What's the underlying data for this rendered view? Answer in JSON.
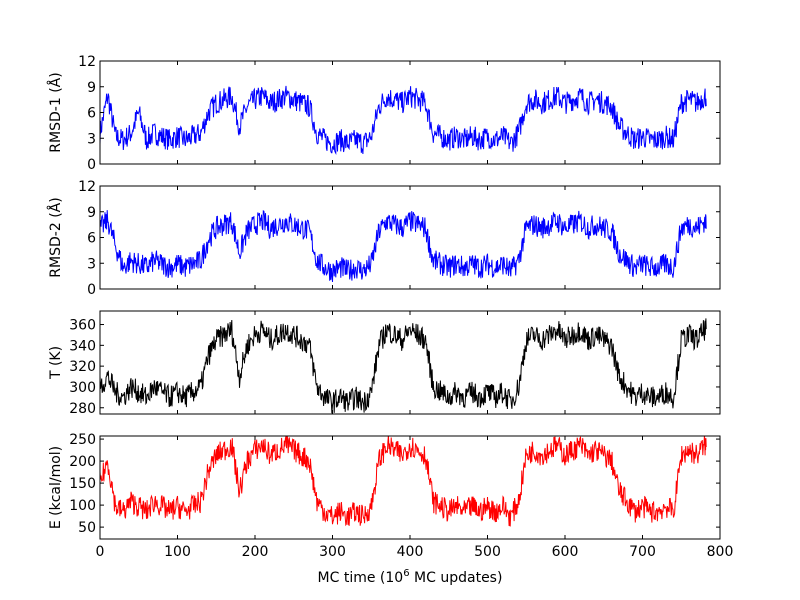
{
  "chart_data": {
    "type": "line",
    "layout": "4 vertically stacked panels sharing x axis",
    "xlabel": "MC time (10^6  MC updates)",
    "xlabel_parts": {
      "pre": "MC time (10",
      "sup": "6",
      "post": "  MC updates)"
    },
    "xlim": [
      0,
      800
    ],
    "xticks": [
      0,
      100,
      200,
      300,
      400,
      500,
      600,
      700,
      800
    ],
    "x": [
      0,
      10,
      20,
      30,
      40,
      50,
      60,
      70,
      80,
      90,
      100,
      110,
      120,
      130,
      140,
      150,
      160,
      170,
      180,
      190,
      200,
      210,
      220,
      230,
      240,
      250,
      260,
      270,
      280,
      290,
      300,
      310,
      320,
      330,
      340,
      350,
      360,
      370,
      380,
      390,
      400,
      410,
      420,
      430,
      440,
      450,
      460,
      470,
      480,
      490,
      500,
      510,
      520,
      530,
      540,
      550,
      560,
      570,
      580,
      590,
      600,
      610,
      620,
      630,
      640,
      650,
      660,
      670,
      680,
      690,
      700,
      710,
      720,
      730,
      740,
      750,
      760,
      770,
      780
    ],
    "panels": [
      {
        "ylabel": "RMSD-1 (Å)",
        "ylim": [
          0,
          12
        ],
        "yticks": [
          0,
          3,
          6,
          9,
          12
        ],
        "color": "#0000ff",
        "values": [
          3.6,
          8.0,
          3.2,
          2.8,
          3.6,
          6.0,
          2.8,
          3.6,
          3.2,
          2.8,
          3.2,
          2.8,
          3.2,
          3.6,
          6.0,
          7.1,
          7.5,
          7.9,
          4.4,
          6.7,
          7.5,
          7.9,
          7.1,
          7.5,
          7.9,
          7.5,
          7.1,
          6.7,
          3.6,
          2.8,
          2.4,
          2.8,
          2.4,
          2.8,
          2.4,
          3.2,
          6.7,
          7.9,
          7.5,
          7.1,
          7.9,
          7.5,
          7.1,
          3.6,
          3.2,
          2.8,
          3.2,
          2.8,
          3.2,
          2.8,
          3.2,
          2.8,
          3.2,
          2.4,
          3.6,
          7.1,
          7.5,
          7.1,
          7.5,
          7.9,
          7.1,
          7.5,
          7.9,
          7.1,
          7.5,
          7.1,
          6.7,
          4.4,
          3.6,
          2.8,
          3.2,
          2.8,
          2.8,
          3.2,
          2.8,
          7.1,
          7.5,
          7.1,
          7.9
        ]
      },
      {
        "ylabel": "RMSD-2 (Å)",
        "ylim": [
          0,
          12
        ],
        "yticks": [
          0,
          3,
          6,
          9,
          12
        ],
        "color": "#0000ff",
        "values": [
          7.0,
          8.0,
          5.0,
          2.5,
          3.3,
          2.9,
          2.5,
          3.3,
          2.9,
          2.5,
          2.9,
          2.5,
          2.9,
          3.3,
          5.8,
          7.1,
          7.5,
          7.9,
          4.2,
          6.7,
          7.5,
          7.9,
          7.1,
          7.5,
          7.9,
          7.5,
          7.1,
          6.7,
          3.3,
          2.5,
          2.1,
          2.5,
          2.1,
          2.5,
          2.1,
          2.9,
          6.7,
          7.9,
          7.5,
          7.1,
          7.9,
          7.5,
          7.1,
          3.3,
          2.9,
          2.5,
          2.9,
          2.5,
          2.9,
          2.5,
          2.9,
          2.5,
          2.9,
          2.1,
          3.3,
          7.1,
          7.5,
          7.1,
          7.5,
          7.9,
          7.1,
          7.5,
          7.9,
          7.1,
          7.5,
          7.1,
          6.7,
          4.2,
          3.3,
          2.5,
          2.9,
          2.5,
          2.5,
          2.9,
          2.5,
          7.1,
          7.5,
          7.1,
          7.9
        ]
      },
      {
        "ylabel": "T (K)",
        "ylim": [
          274,
          373
        ],
        "yticks": [
          280,
          300,
          320,
          340,
          360
        ],
        "color": "#000000",
        "values": [
          300,
          310,
          295,
          290,
          300,
          295,
          290,
          300,
          295,
          290,
          295,
          290,
          295,
          300,
          330,
          345,
          350,
          355,
          310,
          340,
          350,
          355,
          345,
          350,
          355,
          350,
          345,
          340,
          300,
          290,
          285,
          290,
          285,
          290,
          285,
          295,
          340,
          355,
          350,
          345,
          355,
          350,
          345,
          300,
          295,
          290,
          295,
          290,
          295,
          290,
          295,
          290,
          295,
          285,
          300,
          345,
          350,
          345,
          350,
          355,
          345,
          350,
          355,
          345,
          350,
          345,
          340,
          310,
          300,
          290,
          295,
          290,
          290,
          295,
          290,
          345,
          350,
          345,
          355
        ]
      },
      {
        "ylabel": "E (kcal/mol)",
        "ylim": [
          23,
          257
        ],
        "yticks": [
          50,
          100,
          150,
          200,
          250
        ],
        "color": "#ff0000",
        "values": [
          150,
          200,
          97,
          85,
          108,
          97,
          85,
          108,
          97,
          85,
          97,
          85,
          97,
          108,
          178,
          213,
          225,
          236,
          131,
          201,
          225,
          236,
          213,
          225,
          236,
          225,
          213,
          201,
          108,
          85,
          73,
          85,
          73,
          85,
          73,
          97,
          201,
          236,
          225,
          213,
          236,
          225,
          213,
          108,
          97,
          85,
          97,
          85,
          97,
          85,
          97,
          85,
          97,
          73,
          108,
          213,
          225,
          213,
          225,
          236,
          213,
          225,
          236,
          213,
          225,
          213,
          201,
          131,
          108,
          85,
          97,
          85,
          85,
          97,
          85,
          213,
          225,
          213,
          236
        ]
      }
    ]
  }
}
